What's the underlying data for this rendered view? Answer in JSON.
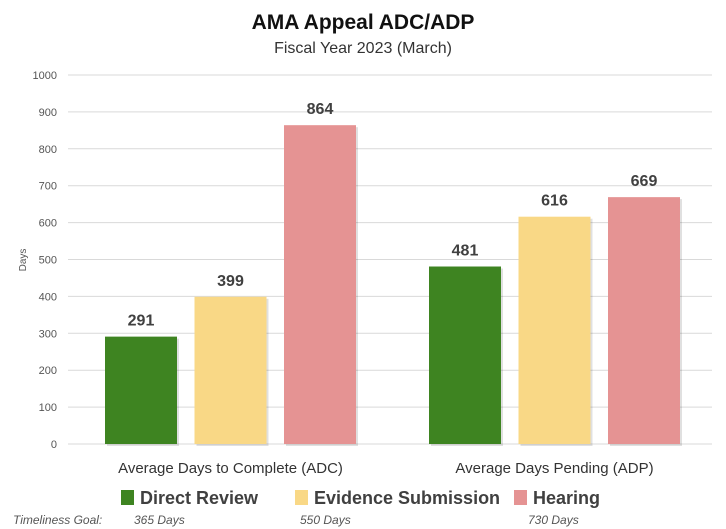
{
  "chart_data": {
    "type": "bar",
    "title": "AMA Appeal ADC/ADP",
    "subtitle": "Fiscal Year 2023 (March)",
    "ylabel": "Days",
    "xlabel": "",
    "ylim": [
      0,
      1000
    ],
    "yticks": [
      0,
      100,
      200,
      300,
      400,
      500,
      600,
      700,
      800,
      900,
      1000
    ],
    "grid": true,
    "legend_position": "bottom",
    "categories": [
      "Average Days to Complete (ADC)",
      "Average Days Pending (ADP)"
    ],
    "series": [
      {
        "name": "Direct Review",
        "values": [
          291,
          481
        ],
        "color": "#3e8421"
      },
      {
        "name": "Evidence Submission",
        "values": [
          399,
          616
        ],
        "color": "#f9d886"
      },
      {
        "name": "Hearing",
        "values": [
          864,
          669
        ],
        "color": "#e59393"
      }
    ],
    "timeliness": {
      "label": "Timeliness Goal:",
      "goals": [
        "365 Days",
        "550 Days",
        "730 Days"
      ]
    }
  }
}
